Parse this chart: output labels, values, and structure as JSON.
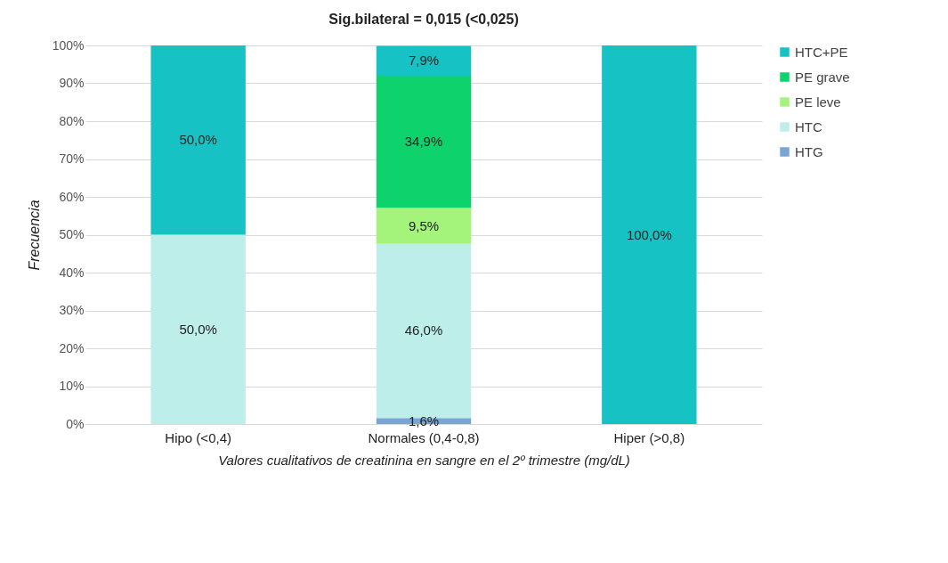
{
  "chart_data": {
    "type": "bar",
    "title": "Sig.bilateral = 0,015 (<0,025)",
    "xlabel": "Valores cualitativos de creatinina en sangre en el 2º trimestre (mg/dL)",
    "ylabel": "Frecuencia",
    "categories": [
      "Hipo (<0,4)",
      "Normales (0,4-0,8)",
      "Hiper (>0,8)"
    ],
    "stacked": true,
    "series": [
      {
        "name": "HTG",
        "color": "#78a4d6",
        "values": [
          0,
          1.6,
          0
        ],
        "value_labels": [
          null,
          "1,6%",
          null
        ]
      },
      {
        "name": "HTC",
        "color": "#bdeeea",
        "values": [
          50,
          46.0,
          0
        ],
        "value_labels": [
          "50,0%",
          "46,0%",
          null
        ]
      },
      {
        "name": "PE leve",
        "color": "#a4f47c",
        "values": [
          0,
          9.5,
          0
        ],
        "value_labels": [
          null,
          "9,5%",
          null
        ]
      },
      {
        "name": "PE grave",
        "color": "#0ed26c",
        "values": [
          0,
          34.9,
          0
        ],
        "value_labels": [
          null,
          "34,9%",
          null
        ]
      },
      {
        "name": "HTC+PE",
        "color": "#16c2c3",
        "values": [
          50,
          7.9,
          100
        ],
        "value_labels": [
          "50,0%",
          "7,9%",
          "100,0%"
        ]
      }
    ],
    "ylim": [
      0,
      100
    ],
    "yticks": [
      {
        "value": 0,
        "label": "0%"
      },
      {
        "value": 10,
        "label": "10%"
      },
      {
        "value": 20,
        "label": "20%"
      },
      {
        "value": 30,
        "label": "30%"
      },
      {
        "value": 40,
        "label": "40%"
      },
      {
        "value": 50,
        "label": "50%"
      },
      {
        "value": 60,
        "label": "60%"
      },
      {
        "value": 70,
        "label": "70%"
      },
      {
        "value": 80,
        "label": "80%"
      },
      {
        "value": 90,
        "label": "90%"
      },
      {
        "value": 100,
        "label": "100%"
      }
    ],
    "grid": "y",
    "legend": "right"
  }
}
